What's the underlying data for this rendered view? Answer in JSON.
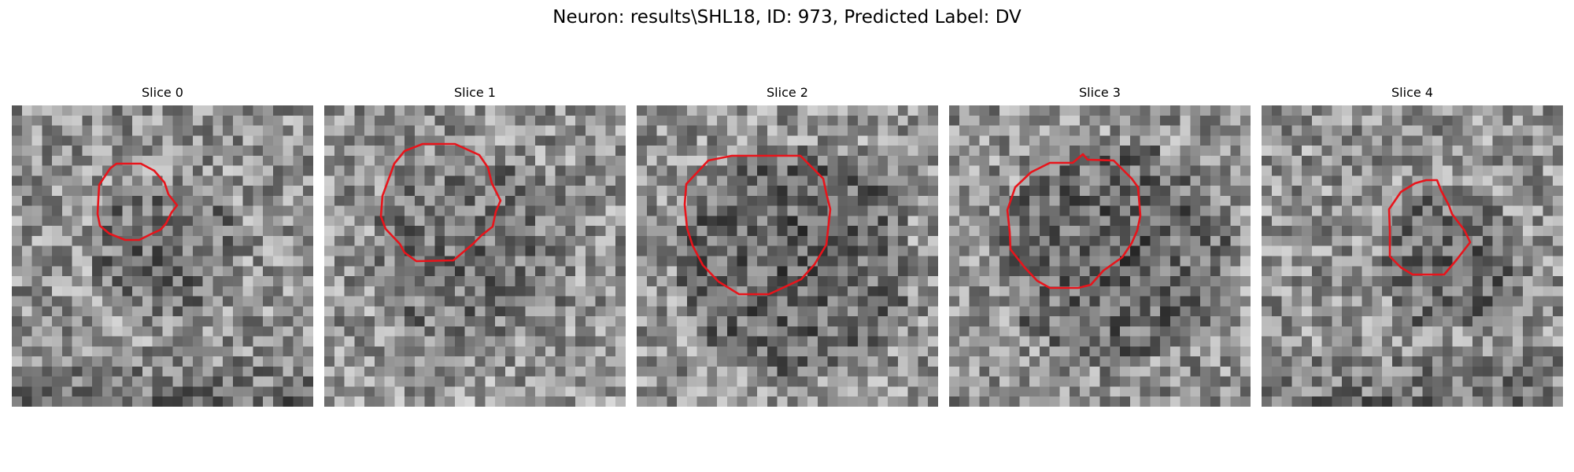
{
  "figure": {
    "title": "Neuron: results\\SHL18, ID: 973, Predicted Label: DV"
  },
  "panels": [
    {
      "title": "Slice 0",
      "contour_color": "#e8141b",
      "colormap": "gray"
    },
    {
      "title": "Slice 1",
      "contour_color": "#e8141b",
      "colormap": "gray"
    },
    {
      "title": "Slice 2",
      "contour_color": "#e8141b",
      "colormap": "gray"
    },
    {
      "title": "Slice 3",
      "contour_color": "#e8141b",
      "colormap": "gray"
    },
    {
      "title": "Slice 4",
      "contour_color": "#e8141b",
      "colormap": "gray"
    }
  ]
}
